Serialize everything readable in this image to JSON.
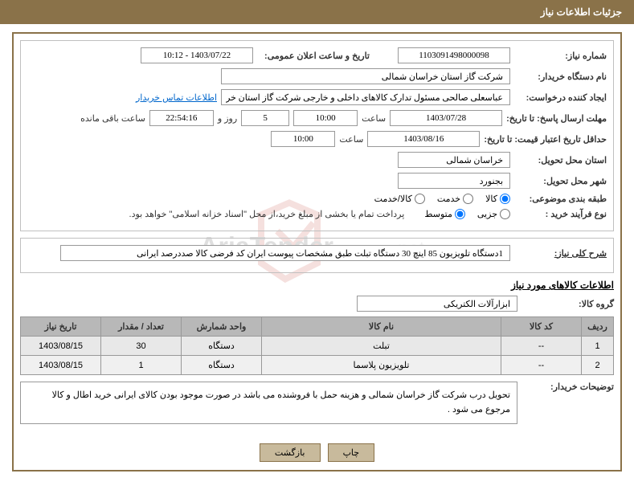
{
  "header": {
    "title": "جزئیات اطلاعات نیاز"
  },
  "request": {
    "number_label": "شماره نیاز:",
    "number": "1103091498000098",
    "announce_label": "تاریخ و ساعت اعلان عمومی:",
    "announce_datetime": "1403/07/22 - 10:12",
    "buyer_label": "نام دستگاه خریدار:",
    "buyer": "شرکت گاز استان خراسان شمالی",
    "requester_label": "ایجاد کننده درخواست:",
    "requester": "عباسعلی صالحی مسئول تدارک کالاهای داخلی و خارجی شرکت گاز استان خر",
    "contact_link": "اطلاعات تماس خریدار",
    "deadline_label": "مهلت ارسال پاسخ: تا تاریخ:",
    "deadline_date": "1403/07/28",
    "time_label": "ساعت",
    "deadline_time": "10:00",
    "days": "5",
    "days_label": "روز و",
    "countdown": "22:54:16",
    "remaining_label": "ساعت باقی مانده",
    "validity_label": "حداقل تاریخ اعتبار قیمت: تا تاریخ:",
    "validity_date": "1403/08/16",
    "validity_time": "10:00",
    "province_label": "استان محل تحویل:",
    "province": "خراسان شمالی",
    "city_label": "شهر محل تحویل:",
    "city": "بجنورد",
    "category_label": "طبقه بندی موضوعی:",
    "cat_goods": "کالا",
    "cat_service": "خدمت",
    "cat_both": "کالا/خدمت",
    "process_label": "نوع فرآیند خرید :",
    "proc_small": "جزیی",
    "proc_medium": "متوسط",
    "payment_note": "پرداخت تمام یا بخشی از مبلغ خرید،از محل \"اسناد خزانه اسلامی\" خواهد بود."
  },
  "summary": {
    "label": "شرح کلی نیاز:",
    "text": "1دستگاه تلویزیون 85 اینچ 30 دستگاه تبلت طبق مشخصات پیوست ایران کد فرضی کالا صددرصد ایرانی"
  },
  "goods": {
    "section_title": "اطلاعات کالاهای مورد نیاز",
    "group_label": "گروه کالا:",
    "group": "ابزارآلات الکتریکی",
    "table": {
      "columns": [
        "ردیف",
        "کد کالا",
        "نام کالا",
        "واحد شمارش",
        "تعداد / مقدار",
        "تاریخ نیاز"
      ],
      "rows": [
        [
          "1",
          "--",
          "تبلت",
          "دستگاه",
          "30",
          "1403/08/15"
        ],
        [
          "2",
          "--",
          "تلویزیون پلاسما",
          "دستگاه",
          "1",
          "1403/08/15"
        ]
      ]
    }
  },
  "buyer_desc": {
    "label": "توضیحات خریدار:",
    "text": "تحویل درب شرکت گاز خراسان شمالی و هزینه حمل با فروشنده می باشد در صورت موجود بودن کالای ایرانی خرید اطال و کالا مرجوع می شود ."
  },
  "buttons": {
    "print": "چاپ",
    "back": "بازگشت"
  },
  "colors": {
    "header_bg": "#8a7249",
    "btn_bg": "#c8ba9c"
  }
}
